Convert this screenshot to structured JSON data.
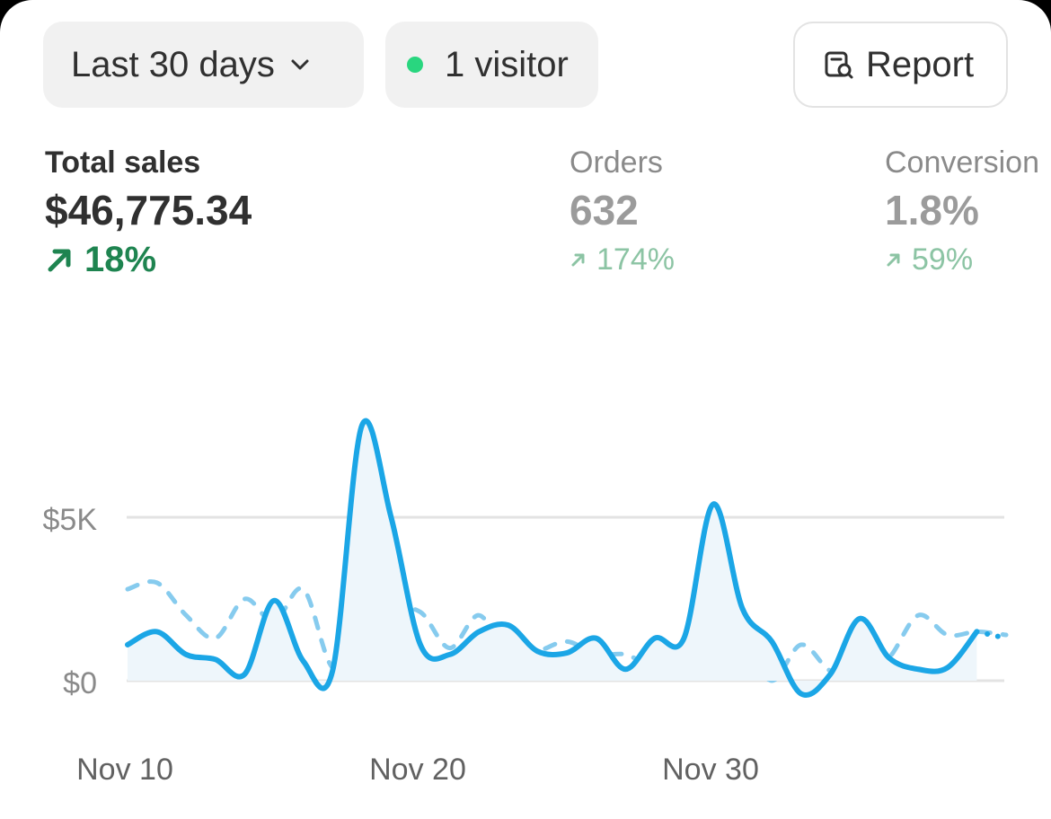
{
  "filters": {
    "date_range_label": "Last 30 days",
    "visitors_label": "1 visitor",
    "report_label": "Report",
    "live_dot_color": "#29d67f"
  },
  "metrics": [
    {
      "label": "Total sales",
      "value": "$46,775.34",
      "change": "18%",
      "trend": "up",
      "active": true
    },
    {
      "label": "Orders",
      "value": "632",
      "change": "174%",
      "trend": "up",
      "active": false
    },
    {
      "label": "Conversion",
      "value": "1.8%",
      "change": "59%",
      "trend": "up",
      "active": false
    }
  ],
  "chart_data": {
    "type": "line",
    "title": "",
    "xlabel": "",
    "ylabel": "",
    "y_ticks": [
      0,
      5000
    ],
    "y_tick_labels": [
      "$0",
      "$5K"
    ],
    "ylim": [
      -500,
      8000
    ],
    "xlim": [
      0,
      30
    ],
    "x_tick_positions": [
      0,
      10,
      20
    ],
    "x_tick_labels": [
      "Nov 10",
      "Nov 20",
      "Nov 30"
    ],
    "grid": true,
    "colors": {
      "current": "#1ba6e6",
      "previous": "#86cbee",
      "grid": "#e3e3e3",
      "area": "#eef6fb"
    },
    "series": [
      {
        "style": "solid",
        "x": [
          0,
          1,
          2,
          3,
          4,
          5,
          6,
          7,
          8,
          9,
          10,
          11,
          12,
          13,
          14,
          15,
          16,
          17,
          18,
          19,
          20,
          21,
          22,
          23,
          24,
          25,
          26,
          27,
          28,
          29,
          30
        ],
        "values": [
          1100,
          1500,
          800,
          650,
          200,
          2450,
          600,
          300,
          7800,
          5000,
          1100,
          800,
          1500,
          1700,
          900,
          850,
          1300,
          350,
          1300,
          1300,
          5400,
          2200,
          1200,
          -400,
          200,
          1900,
          700,
          350,
          400,
          1500,
          1300
        ]
      },
      {
        "style": "dashed",
        "x": [
          0,
          1,
          2,
          3,
          4,
          5,
          6,
          7,
          8,
          9,
          10,
          11,
          12,
          13,
          14,
          15,
          16,
          17,
          18,
          19,
          20,
          21,
          22,
          23,
          24,
          25,
          26,
          27,
          28,
          29,
          30
        ],
        "values": [
          2800,
          3000,
          2000,
          1300,
          2500,
          1800,
          2800,
          400,
          1100,
          2100,
          2100,
          1000,
          2000,
          800,
          900,
          1200,
          800,
          800,
          400,
          400,
          300,
          1100,
          0,
          1100,
          300,
          200,
          700,
          2000,
          1400,
          1500,
          1400
        ]
      }
    ]
  }
}
